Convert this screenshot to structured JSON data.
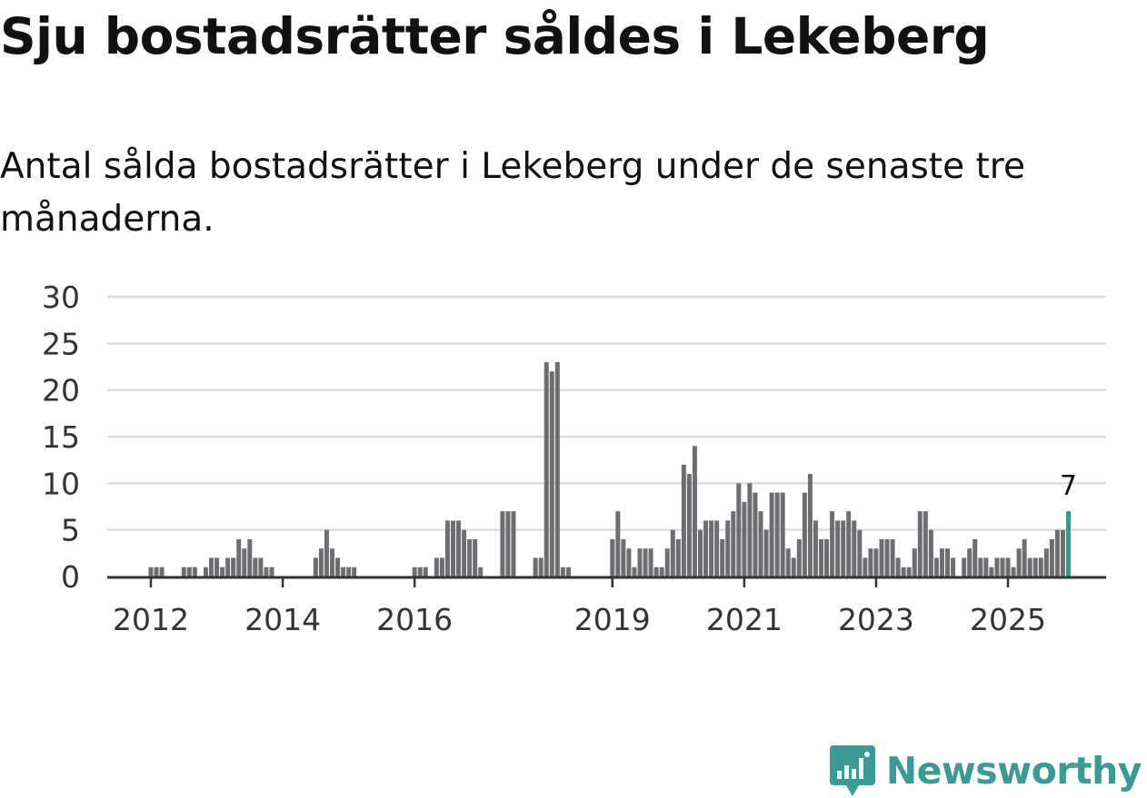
{
  "title": "Sju bostadsrätter såldes i Lekeberg",
  "subtitle": "Antal sålda bostadsrätter i Lekeberg under de senaste tre månaderna.",
  "brand": {
    "name": "Newsworthy",
    "color": "#3a9a96",
    "icon": "newsworthy-logo-icon"
  },
  "chart_data": {
    "type": "bar",
    "title": "Sju bostadsrätter såldes i Lekeberg",
    "xlabel": "",
    "ylabel": "",
    "ylim": [
      0,
      30
    ],
    "yticks": [
      "0",
      "5",
      "10",
      "15",
      "20",
      "25",
      "30"
    ],
    "start": "2012-01",
    "xtick_labels": [
      {
        "label": "2012",
        "month_index": 0
      },
      {
        "label": "2014",
        "month_index": 24
      },
      {
        "label": "2016",
        "month_index": 48
      },
      {
        "label": "2019",
        "month_index": 84
      },
      {
        "label": "2021",
        "month_index": 108
      },
      {
        "label": "2023",
        "month_index": 132
      },
      {
        "label": "2025",
        "month_index": 156
      }
    ],
    "bar_color": "#6e6d72",
    "highlight_color": "#2a9d98",
    "highlight_label": "7",
    "values": [
      1,
      1,
      1,
      0,
      0,
      0,
      1,
      1,
      1,
      0,
      1,
      2,
      2,
      1,
      2,
      2,
      4,
      3,
      4,
      2,
      2,
      1,
      1,
      0,
      0,
      0,
      0,
      0,
      0,
      0,
      2,
      3,
      5,
      3,
      2,
      1,
      1,
      1,
      0,
      0,
      0,
      0,
      0,
      0,
      0,
      0,
      0,
      0,
      1,
      1,
      1,
      0,
      2,
      2,
      6,
      6,
      6,
      5,
      4,
      4,
      1,
      0,
      0,
      0,
      7,
      7,
      7,
      0,
      0,
      0,
      2,
      2,
      23,
      22,
      23,
      1,
      1,
      0,
      0,
      0,
      0,
      0,
      0,
      0,
      4,
      7,
      4,
      3,
      1,
      3,
      3,
      3,
      1,
      1,
      3,
      5,
      4,
      12,
      11,
      14,
      5,
      6,
      6,
      6,
      4,
      6,
      7,
      10,
      8,
      10,
      9,
      7,
      5,
      9,
      9,
      9,
      3,
      2,
      4,
      9,
      11,
      6,
      4,
      4,
      7,
      6,
      6,
      7,
      6,
      5,
      2,
      3,
      3,
      4,
      4,
      4,
      2,
      1,
      1,
      3,
      7,
      7,
      5,
      2,
      3,
      3,
      2,
      0,
      2,
      3,
      4,
      2,
      2,
      1,
      2,
      2,
      2,
      1,
      3,
      4,
      2,
      2,
      2,
      3,
      4,
      5,
      5,
      7
    ]
  }
}
